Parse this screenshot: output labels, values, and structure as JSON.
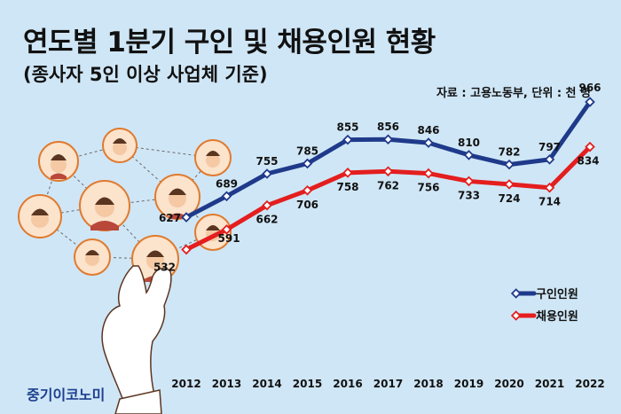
{
  "title": "연도별 1분기 구인 및 채용인원 현황",
  "subtitle": "(종사자 5인 이상 사업체 기준)",
  "source": "자료 : 고용노동부, 단위 : 천 명",
  "brand": "중기이코노미",
  "chart_data": {
    "type": "line",
    "categories": [
      "2012",
      "2013",
      "2014",
      "2015",
      "2016",
      "2017",
      "2018",
      "2019",
      "2020",
      "2021",
      "2022"
    ],
    "series": [
      {
        "name": "구인인원",
        "color": "#1f3a8a",
        "values": [
          627,
          689,
          755,
          785,
          855,
          856,
          846,
          810,
          782,
          797,
          966
        ]
      },
      {
        "name": "채용인원",
        "color": "#e41e1e",
        "values": [
          532,
          591,
          662,
          706,
          758,
          762,
          756,
          733,
          724,
          714,
          834
        ]
      }
    ],
    "legend_position": "bottom-right",
    "grid": false,
    "ylim": [
      450,
      1000
    ]
  }
}
